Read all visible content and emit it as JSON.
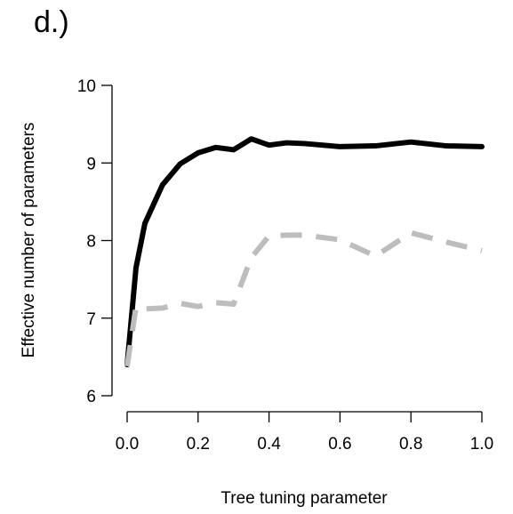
{
  "panel_label": "d.)",
  "chart_data": {
    "type": "line",
    "title": "",
    "xlabel": "Tree tuning parameter",
    "ylabel": "Effective number of parameters",
    "xlim": [
      0,
      1
    ],
    "ylim": [
      6,
      10
    ],
    "xticks": [
      0.0,
      0.2,
      0.4,
      0.6,
      0.8,
      1.0
    ],
    "xtick_labels": [
      "0.0",
      "0.2",
      "0.4",
      "0.6",
      "0.8",
      "1.0"
    ],
    "yticks": [
      6,
      7,
      8,
      9,
      10
    ],
    "ytick_labels": [
      "6",
      "7",
      "8",
      "9",
      "10"
    ],
    "grid": false,
    "legend": "none",
    "series": [
      {
        "style": "solid",
        "color": "#000000",
        "x": [
          0.0,
          0.025,
          0.05,
          0.1,
          0.15,
          0.2,
          0.25,
          0.3,
          0.35,
          0.4,
          0.45,
          0.5,
          0.6,
          0.7,
          0.8,
          0.9,
          1.0
        ],
        "y": [
          6.4,
          7.65,
          8.22,
          8.72,
          8.99,
          9.13,
          9.2,
          9.17,
          9.31,
          9.23,
          9.26,
          9.25,
          9.21,
          9.22,
          9.27,
          9.22,
          9.21
        ]
      },
      {
        "style": "dashed",
        "color": "#bdbdbd",
        "x": [
          0.0,
          0.025,
          0.05,
          0.1,
          0.15,
          0.2,
          0.25,
          0.3,
          0.35,
          0.4,
          0.45,
          0.5,
          0.6,
          0.7,
          0.8,
          0.9,
          1.0
        ],
        "y": [
          6.38,
          7.15,
          7.12,
          7.13,
          7.19,
          7.15,
          7.2,
          7.18,
          7.78,
          8.06,
          8.07,
          8.07,
          8.01,
          7.8,
          8.1,
          7.98,
          7.87
        ]
      }
    ]
  }
}
